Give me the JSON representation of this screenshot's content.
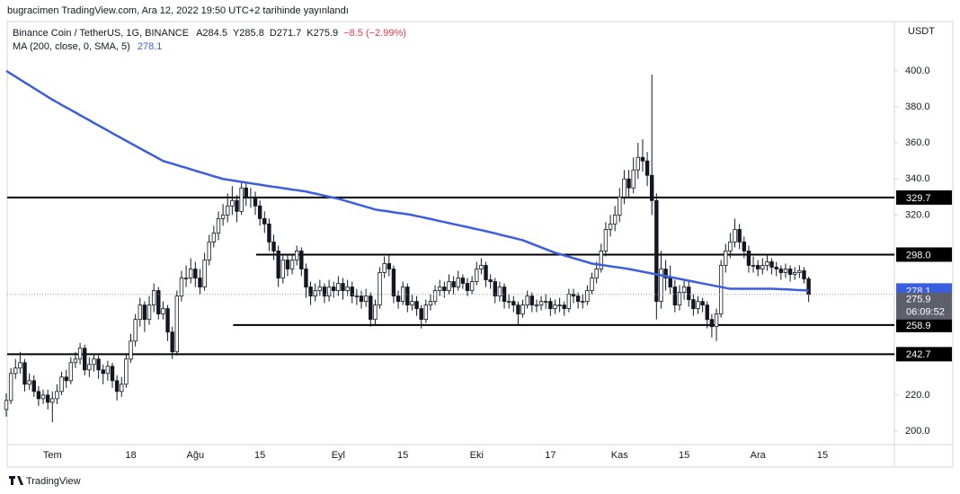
{
  "header": {
    "published": "bugracimen TradingView.com, Ara 12, 2022 19:50 UTC+2 tarihinde yayınlandı"
  },
  "footer": {
    "brand": "TradingView"
  },
  "chart_data": {
    "type": "candlestick",
    "title": "Binance Coin / TetherUS, 1G, BINANCE",
    "ohlc_labels": [
      "A",
      "Y",
      "D",
      "K"
    ],
    "change": "−8.5 (−2.99%)",
    "currency": "USDT",
    "countdown": "06:09:52",
    "up_color": "#ffffff",
    "down_color": "#131722",
    "categories": [
      null,
      null,
      null,
      null,
      null,
      null,
      null,
      null,
      null,
      null,
      "Tem",
      null,
      null,
      null,
      null,
      null,
      null,
      null,
      null,
      null,
      null,
      null,
      null,
      null,
      null,
      null,
      null,
      "18",
      null,
      null,
      null,
      null,
      null,
      null,
      null,
      null,
      null,
      null,
      null,
      null,
      null,
      "Ağu",
      null,
      null,
      null,
      null,
      null,
      null,
      null,
      null,
      null,
      null,
      null,
      null,
      null,
      "15",
      null,
      null,
      null,
      null,
      null,
      null,
      null,
      null,
      null,
      null,
      null,
      null,
      null,
      null,
      null,
      null,
      "Eyl",
      null,
      null,
      null,
      null,
      null,
      null,
      null,
      null,
      null,
      null,
      null,
      null,
      null,
      "15",
      null,
      null,
      null,
      null,
      null,
      null,
      null,
      null,
      null,
      null,
      null,
      null,
      null,
      null,
      null,
      "Eki",
      null,
      null,
      null,
      null,
      null,
      null,
      null,
      null,
      null,
      null,
      null,
      null,
      null,
      null,
      null,
      "17",
      null,
      null,
      null,
      null,
      null,
      null,
      null,
      null,
      null,
      null,
      null,
      null,
      null,
      null,
      "Kas",
      null,
      null,
      null,
      null,
      null,
      null,
      null,
      null,
      null,
      null,
      null,
      null,
      null,
      "15",
      null,
      null,
      null,
      null,
      null,
      null,
      null,
      null,
      null,
      null,
      null,
      null,
      null,
      null,
      null,
      "Ara",
      null,
      null,
      null,
      null,
      null,
      null,
      null,
      null,
      null,
      null,
      null,
      null,
      null,
      "15"
    ],
    "open": [
      212,
      217,
      232,
      235,
      238,
      226,
      228,
      222,
      218,
      220,
      216,
      218,
      222,
      230,
      228,
      238,
      240,
      246,
      234,
      237,
      240,
      234,
      232,
      236,
      228,
      222,
      226,
      240,
      250,
      262,
      270,
      262,
      270,
      278,
      265,
      268,
      255,
      244,
      275,
      285,
      285,
      290,
      285,
      280,
      295,
      305,
      310,
      318,
      320,
      325,
      328,
      322,
      335,
      330,
      330,
      325,
      318,
      315,
      305,
      300,
      285,
      295,
      290,
      295,
      300,
      290,
      280,
      275,
      278,
      280,
      275,
      280,
      278,
      282,
      278,
      280,
      275,
      275,
      272,
      275,
      262,
      270,
      288,
      293,
      290,
      275,
      272,
      280,
      270,
      272,
      268,
      262,
      270,
      272,
      278,
      280,
      278,
      283,
      280,
      285,
      282,
      278,
      283,
      290,
      292,
      284,
      283,
      275,
      280,
      272,
      272,
      270,
      265,
      270,
      275,
      270,
      270,
      272,
      272,
      268,
      270,
      270,
      268,
      276,
      275,
      272,
      272,
      278,
      285,
      290,
      300,
      312,
      315,
      320,
      330,
      340,
      335,
      345,
      352,
      350,
      342,
      328,
      272,
      290,
      285,
      280,
      270,
      277,
      280,
      273,
      268,
      272,
      270,
      262,
      258,
      265,
      292,
      300,
      305,
      312,
      305,
      300,
      292,
      292,
      290,
      292,
      294,
      291,
      290,
      288,
      290,
      287,
      288,
      289,
      284.5,
      null,
      null,
      null
    ],
    "high": [
      221,
      235,
      240,
      244,
      240,
      232,
      231,
      225,
      223,
      223,
      222,
      226,
      233,
      234,
      241,
      244,
      249,
      248,
      241,
      243,
      242,
      237,
      239,
      238,
      231,
      230,
      243,
      254,
      265,
      274,
      272,
      275,
      282,
      280,
      272,
      270,
      258,
      278,
      289,
      292,
      296,
      294,
      290,
      299,
      309,
      314,
      322,
      326,
      332,
      336,
      331,
      338,
      338,
      335,
      333,
      328,
      322,
      318,
      309,
      303,
      298,
      298,
      298,
      303,
      302,
      293,
      283,
      282,
      284,
      282,
      284,
      283,
      286,
      285,
      284,
      283,
      279,
      278,
      279,
      277,
      273,
      291,
      297,
      298,
      292,
      278,
      283,
      282,
      276,
      275,
      270,
      273,
      276,
      281,
      284,
      283,
      287,
      286,
      289,
      287,
      285,
      286,
      294,
      296,
      294,
      287,
      285,
      283,
      282,
      276,
      275,
      272,
      273,
      278,
      277,
      273,
      275,
      276,
      274,
      273,
      274,
      272,
      279,
      279,
      277,
      276,
      281,
      288,
      294,
      304,
      316,
      320,
      325,
      335,
      345,
      345,
      352,
      360,
      362,
      355,
      398,
      332,
      300,
      295,
      292,
      284,
      281,
      284,
      283,
      276,
      275,
      274,
      272,
      265,
      268,
      295,
      304,
      310,
      318,
      315,
      308,
      303,
      297,
      295,
      296,
      298,
      296,
      294,
      292,
      293,
      292,
      291,
      292,
      291,
      285.8,
      null,
      null,
      null
    ],
    "low": [
      208,
      215,
      229,
      232,
      222,
      223,
      219,
      214,
      215,
      212,
      205,
      215,
      220,
      224,
      226,
      235,
      237,
      231,
      230,
      233,
      229,
      226,
      228,
      224,
      217,
      219,
      224,
      238,
      247,
      258,
      255,
      259,
      266,
      262,
      262,
      250,
      240,
      242,
      272,
      280,
      282,
      280,
      276,
      278,
      292,
      302,
      306,
      314,
      316,
      320,
      316,
      320,
      325,
      324,
      320,
      314,
      310,
      300,
      295,
      280,
      282,
      286,
      287,
      292,
      286,
      274,
      270,
      272,
      275,
      271,
      272,
      274,
      275,
      273,
      275,
      271,
      270,
      268,
      269,
      258,
      259,
      268,
      285,
      286,
      271,
      268,
      270,
      266,
      267,
      264,
      257,
      260,
      267,
      270,
      275,
      274,
      276,
      276,
      278,
      279,
      275,
      276,
      281,
      287,
      280,
      279,
      271,
      272,
      268,
      268,
      266,
      259,
      263,
      268,
      266,
      266,
      267,
      268,
      264,
      265,
      266,
      264,
      266,
      271,
      268,
      268,
      270,
      276,
      282,
      288,
      297,
      308,
      311,
      316,
      326,
      330,
      332,
      340,
      344,
      336,
      320,
      262,
      268,
      278,
      276,
      266,
      267,
      273,
      269,
      264,
      265,
      266,
      257,
      252,
      250,
      263,
      288,
      296,
      302,
      301,
      296,
      288,
      288,
      286,
      287,
      289,
      287,
      286,
      284,
      285,
      283,
      284,
      285,
      282,
      271.7,
      null,
      null,
      null
    ],
    "close": [
      217,
      232,
      235,
      238,
      226,
      228,
      222,
      218,
      220,
      216,
      218,
      222,
      230,
      228,
      238,
      240,
      246,
      234,
      237,
      240,
      234,
      232,
      236,
      228,
      222,
      226,
      240,
      250,
      262,
      270,
      262,
      270,
      278,
      265,
      268,
      255,
      244,
      275,
      285,
      285,
      290,
      285,
      280,
      295,
      305,
      310,
      318,
      320,
      325,
      328,
      322,
      335,
      330,
      330,
      325,
      318,
      315,
      305,
      300,
      285,
      295,
      290,
      295,
      300,
      290,
      280,
      275,
      278,
      280,
      275,
      280,
      278,
      282,
      278,
      280,
      275,
      275,
      272,
      275,
      262,
      270,
      288,
      293,
      290,
      275,
      272,
      280,
      270,
      272,
      268,
      262,
      270,
      272,
      278,
      280,
      278,
      283,
      280,
      285,
      282,
      278,
      283,
      290,
      292,
      284,
      283,
      275,
      280,
      272,
      272,
      270,
      265,
      270,
      275,
      270,
      270,
      272,
      272,
      268,
      270,
      270,
      268,
      276,
      275,
      272,
      272,
      278,
      285,
      290,
      300,
      312,
      315,
      320,
      330,
      340,
      335,
      345,
      352,
      350,
      342,
      328,
      272,
      290,
      285,
      280,
      270,
      277,
      280,
      273,
      268,
      272,
      270,
      262,
      258,
      265,
      292,
      300,
      305,
      312,
      305,
      300,
      292,
      292,
      290,
      292,
      294,
      291,
      290,
      288,
      290,
      287,
      288,
      289,
      284.5,
      275.9,
      null,
      null,
      null
    ],
    "ma": {
      "name": "MA (200, close, 0, SMA, 5)",
      "color": "#3a5ee0",
      "values": [
        400,
        398.4,
        396.8,
        395.2,
        393.6,
        392,
        390.4,
        388.8,
        387.2,
        385.6,
        384,
        382.6,
        381.1,
        379.7,
        378.3,
        376.9,
        375.4,
        374,
        372.6,
        371.1,
        369.7,
        368.3,
        366.9,
        365.4,
        364,
        362.6,
        361.2,
        359.8,
        358.4,
        357,
        355.6,
        354.2,
        352.8,
        351.4,
        350,
        349.2,
        348.5,
        347.7,
        346.9,
        346.2,
        345.4,
        344.6,
        343.8,
        343.1,
        342.3,
        341.5,
        340.8,
        340,
        339.6,
        339.2,
        338.8,
        338.4,
        338,
        337.6,
        337.2,
        336.8,
        336.4,
        336,
        335.6,
        335.3,
        334.9,
        334.5,
        334.1,
        333.8,
        333.4,
        333,
        332.4,
        331.9,
        331.3,
        330.7,
        330.1,
        329.6,
        329,
        328.3,
        327.5,
        326.8,
        326,
        325.3,
        324.5,
        323.8,
        323,
        322.6,
        322.3,
        321.9,
        321.5,
        321.1,
        320.8,
        320.4,
        320,
        319.4,
        318.9,
        318.3,
        317.8,
        317.2,
        316.6,
        316.1,
        315.5,
        314.9,
        314.4,
        313.8,
        313.3,
        312.7,
        312.1,
        311.6,
        311,
        310.4,
        309.8,
        309.1,
        308.5,
        307.9,
        307.3,
        306.6,
        306,
        305,
        304,
        303,
        302,
        301,
        300,
        299,
        298.3,
        297.5,
        296.8,
        296,
        295.3,
        294.5,
        293.8,
        293,
        292.6,
        292.3,
        291.9,
        291.5,
        291.1,
        290.8,
        290.4,
        290,
        289.5,
        289,
        288.5,
        288,
        287.5,
        287,
        286.5,
        286,
        285.5,
        285,
        284.5,
        284,
        283.5,
        283,
        282.5,
        282,
        281.5,
        281,
        280.5,
        280,
        279.5,
        279,
        279,
        279,
        279,
        279,
        279,
        279,
        279,
        279,
        279,
        278.9,
        278.8,
        278.7,
        278.6,
        278.4,
        278.3,
        278.2,
        278.1,
        null,
        null,
        null
      ]
    },
    "levels": [
      329.7,
      {
        "value": 298,
        "label": "298.0"
      },
      258.9,
      242.7
    ],
    "ylim": [
      192.5,
      427.4
    ],
    "yticks": [
      {
        "value": 200,
        "label": "200.0"
      },
      {
        "value": 220,
        "label": "220.0"
      },
      {
        "value": 320,
        "label": "320.0"
      },
      {
        "value": 340,
        "label": "340.0"
      },
      {
        "value": 360,
        "label": "360.0"
      },
      {
        "value": 380,
        "label": "380.0"
      },
      {
        "value": 400,
        "label": "400.0"
      }
    ]
  }
}
